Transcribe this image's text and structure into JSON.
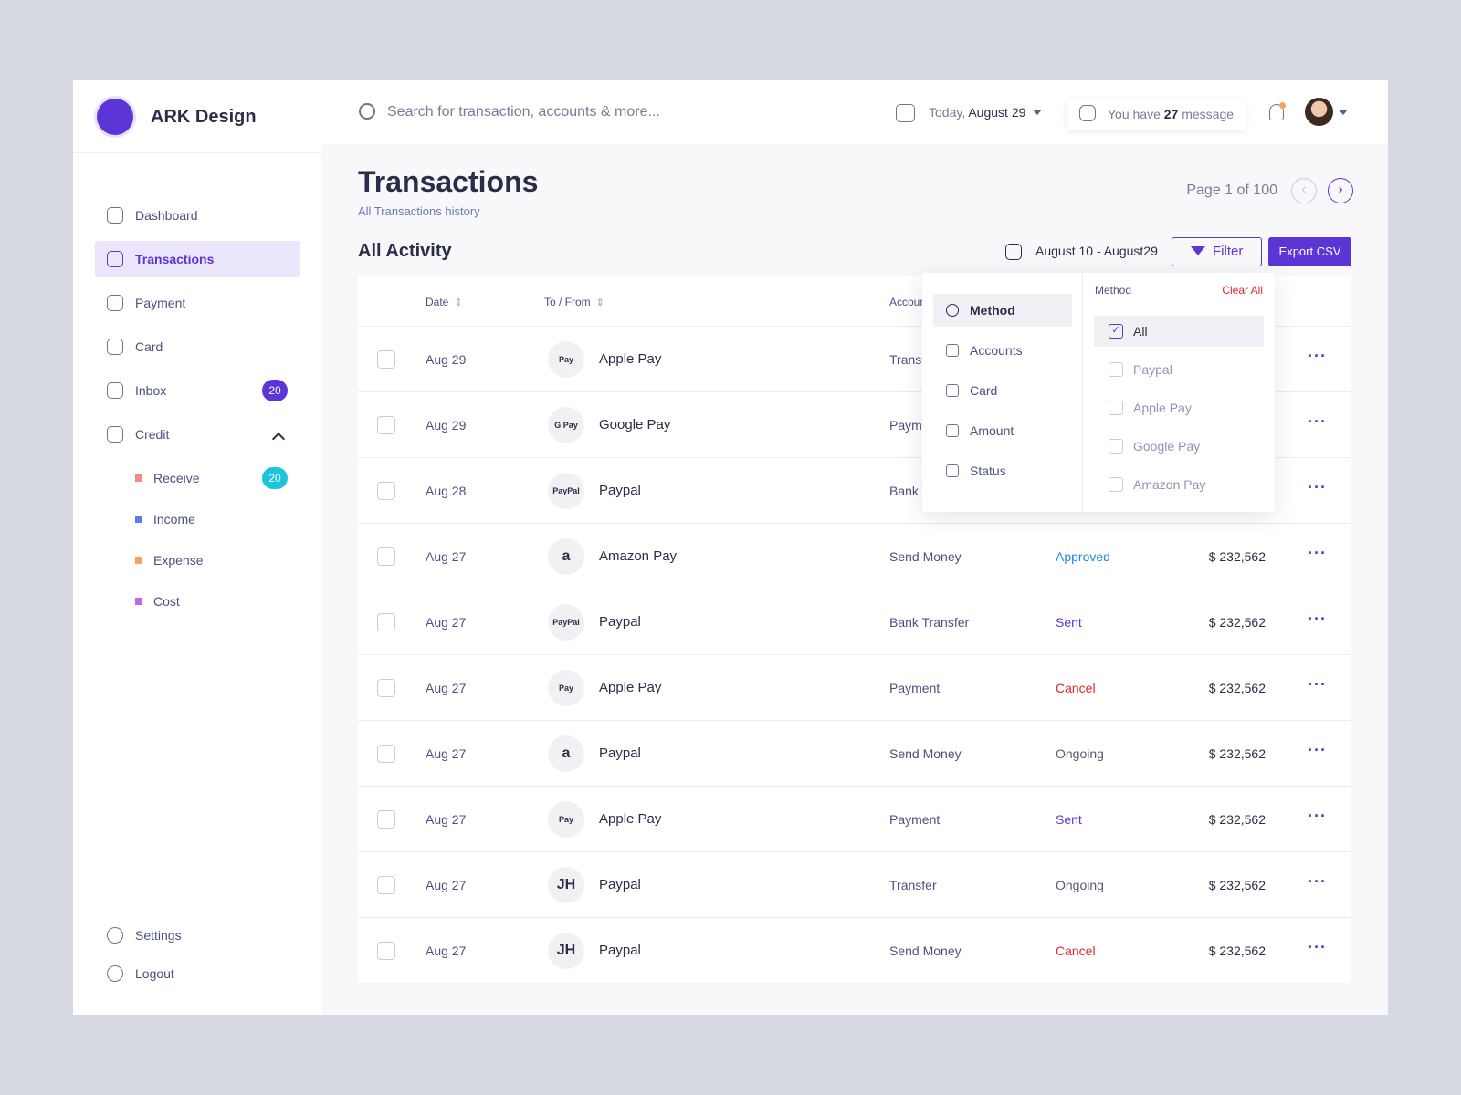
{
  "brand": {
    "name": "ARK Design"
  },
  "search": {
    "placeholder": "Search for transaction, accounts & more..."
  },
  "header": {
    "date_label": "Today,",
    "date": "August 29",
    "message": {
      "prefix": "You have",
      "count": "27",
      "suffix": "message"
    }
  },
  "sidebar": {
    "active": 1,
    "nav": [
      {
        "label": "Dashboard"
      },
      {
        "label": "Transactions"
      },
      {
        "label": "Payment"
      },
      {
        "label": "Card"
      },
      {
        "label": "Inbox",
        "badge": "20"
      },
      {
        "label": "Credit"
      }
    ],
    "credit": [
      {
        "label": "Receive",
        "color": "#f28b82",
        "badge": "20"
      },
      {
        "label": "Income",
        "color": "#5b7bf0"
      },
      {
        "label": "Expense",
        "color": "#f5a25d"
      },
      {
        "label": "Cost",
        "color": "#c064e8"
      }
    ],
    "footer": [
      {
        "label": "Settings"
      },
      {
        "label": "Logout"
      }
    ]
  },
  "page": {
    "title": "Transactions",
    "subtitle": "All Transactions history",
    "pagination": "Page 1 of 100",
    "section": "All Activity",
    "date_range": "August 10 - August29",
    "filter": "Filter",
    "export": "Export CSV"
  },
  "table": {
    "columns": [
      {
        "label": "Date",
        "sortable": true
      },
      {
        "label": "To / From",
        "sortable": true
      },
      {
        "label": "Account"
      }
    ],
    "rows": [
      {
        "date": "Aug 29",
        "logo": "Pay",
        "name": "Apple Pay",
        "account": "Transfer"
      },
      {
        "date": "Aug 29",
        "logo": "G Pay",
        "name": "Google Pay",
        "account": "Payment"
      },
      {
        "date": "Aug 28",
        "logo": "PayPal",
        "name": "Paypal",
        "account": "Bank Transfer"
      },
      {
        "date": "Aug 27",
        "logo": "a",
        "name": "Amazon Pay",
        "account": "Send Money",
        "status": "Approved",
        "status_color": "#1e88e5",
        "amount": "$ 232,562"
      },
      {
        "date": "Aug 27",
        "logo": "PayPal",
        "name": "Paypal",
        "account": "Bank Transfer",
        "status": "Sent",
        "status_color": "#5b35d5",
        "amount": "$ 232,562"
      },
      {
        "date": "Aug 27",
        "logo": "Pay",
        "name": "Apple Pay",
        "account": "Payment",
        "status": "Cancel",
        "status_color": "#e5262b",
        "amount": "$ 232,562"
      },
      {
        "date": "Aug 27",
        "logo": "a",
        "name": "Paypal",
        "account": "Send Money",
        "status": "Ongoing",
        "status_color": "#555b6e",
        "amount": "$ 232,562"
      },
      {
        "date": "Aug 27",
        "logo": "Pay",
        "name": "Apple Pay",
        "account": "Payment",
        "status": "Sent",
        "status_color": "#5b35d5",
        "amount": "$ 232,562"
      },
      {
        "date": "Aug 27",
        "logo": "JH",
        "name": "Paypal",
        "account": "Transfer",
        "status": "Ongoing",
        "status_color": "#555b6e",
        "amount": "$ 232,562"
      },
      {
        "date": "Aug 27",
        "logo": "JH",
        "name": "Paypal",
        "account": "Send Money",
        "status": "Cancel",
        "status_color": "#e5262b",
        "amount": "$ 232,562"
      }
    ]
  },
  "filter_menu": {
    "active": 0,
    "categories": [
      "Method",
      "Accounts",
      "Card",
      "Amount",
      "Status"
    ],
    "panel": {
      "title": "Method",
      "clear": "Clear All",
      "options": [
        {
          "label": "All",
          "checked": true
        },
        {
          "label": "Paypal"
        },
        {
          "label": "Apple Pay"
        },
        {
          "label": "Google Pay"
        },
        {
          "label": "Amazon Pay"
        }
      ]
    }
  }
}
